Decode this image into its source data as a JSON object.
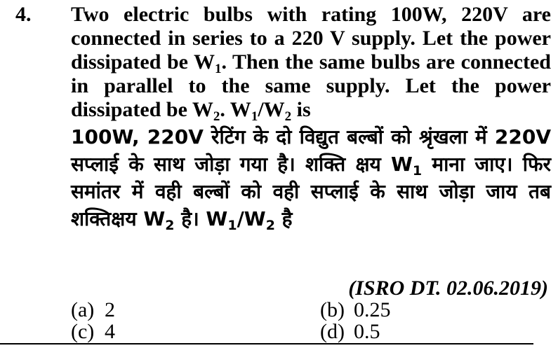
{
  "question": {
    "number": "4.",
    "english": {
      "l1": "Two electric bulbs with rating 100W, 220V are connected in series to a 220 V supply. Let the power dissipated be W",
      "sub1": "1",
      "l2": ". Then the same bulbs are connected in parallel to the same supply. Let the power dissipated be W",
      "sub2": "2",
      "l3": ". W",
      "sub3": "1",
      "l4": "/W",
      "sub4": "2",
      "l5": " is"
    },
    "hindi": {
      "h1": "100W, 220V रेटिंग के दो विद्युत बल्बों को श्रृंखला में 220V सप्लाई के साथ जोड़ा गया है। शक्ति क्षय W",
      "sub1": "1",
      "h2": " माना जाए। फिर समांतर में वही बल्बों को वही सप्लाई के साथ जोड़ा जाय तब शक्तिक्षय W",
      "sub2": "2",
      "h3": " है। W",
      "sub3": "1",
      "h4": "/W",
      "sub4": "2",
      "h5": " है"
    },
    "source": "(ISRO DT. 02.06.2019)",
    "options": [
      {
        "label": "(a)",
        "value": "2"
      },
      {
        "label": "(b)",
        "value": "0.25"
      },
      {
        "label": "(c)",
        "value": "4"
      },
      {
        "label": "(d)",
        "value": "0.5"
      }
    ]
  }
}
